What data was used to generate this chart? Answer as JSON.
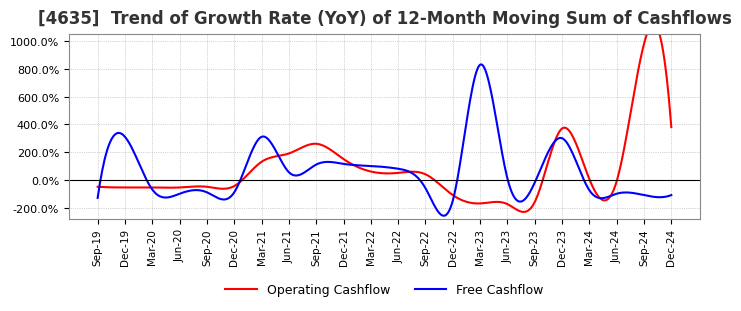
{
  "title": "[4635]  Trend of Growth Rate (YoY) of 12-Month Moving Sum of Cashflows",
  "title_fontsize": 12,
  "ylim": [
    -280,
    1050
  ],
  "yticks": [
    -200,
    0,
    200,
    400,
    600,
    800,
    1000
  ],
  "ytick_labels": [
    "-200.0%",
    "0.0%",
    "200.0%",
    "400.0%",
    "600.0%",
    "800.0%",
    "1000.0%"
  ],
  "xlabel_dates": [
    "Sep-19",
    "Dec-19",
    "Mar-20",
    "Jun-20",
    "Sep-20",
    "Dec-20",
    "Mar-21",
    "Jun-21",
    "Sep-21",
    "Dec-21",
    "Mar-22",
    "Jun-22",
    "Sep-22",
    "Dec-22",
    "Mar-23",
    "Jun-23",
    "Sep-23",
    "Dec-23",
    "Mar-24",
    "Jun-24",
    "Sep-24",
    "Dec-24"
  ],
  "operating_cashflow": [
    -50,
    -55,
    -55,
    -55,
    -50,
    -45,
    130,
    190,
    260,
    150,
    60,
    50,
    40,
    -110,
    -170,
    -175,
    -160,
    370,
    5,
    -10,
    980,
    380
  ],
  "free_cashflow": [
    -130,
    310,
    -70,
    -100,
    -90,
    -90,
    310,
    55,
    110,
    115,
    100,
    80,
    -60,
    -150,
    830,
    10,
    -20,
    300,
    -75,
    -100,
    -110,
    -110
  ],
  "operating_color": "#ff0000",
  "free_color": "#0000ff",
  "legend_labels": [
    "Operating Cashflow",
    "Free Cashflow"
  ],
  "grid_color": "#aaaaaa",
  "background_color": "#ffffff"
}
